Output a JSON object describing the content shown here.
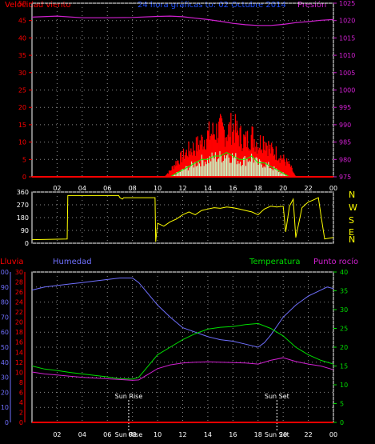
{
  "header": {
    "left_label": "Velocidad viento",
    "title": "24 hora gráficas to: 02 Octubre 2014",
    "right_label": "Presión"
  },
  "panel3_headers": {
    "rain": "Lluvia",
    "humidity": "Humedad",
    "temperature": "Temperatura",
    "dewpoint": "Punto rocío"
  },
  "colors": {
    "wind_axis": "#ff0000",
    "pressure": "#d020d0",
    "gust": "#ff0000",
    "avg_wind": "#00ff00",
    "wind_fill_light": "#c8ffc8",
    "direction": "#ffff00",
    "humidity": "#7070ff",
    "temperature": "#00dd00",
    "dewpoint": "#d020d0",
    "rain": "#ff0000",
    "title": "#2050ff",
    "axis_white": "#ffffff"
  },
  "chart_data": [
    {
      "type": "area",
      "title": "24 hora gráficas to: 02 Octubre 2014",
      "x_ticks": [
        "02",
        "04",
        "06",
        "08",
        "10",
        "12",
        "14",
        "16",
        "18",
        "20",
        "22",
        "00"
      ],
      "y_left": {
        "label": "Velocidad viento",
        "range": [
          0,
          50
        ],
        "ticks": [
          0,
          5,
          10,
          15,
          20,
          25,
          30,
          35,
          40,
          45,
          50
        ]
      },
      "y_right": {
        "label": "Presión",
        "range": [
          975,
          1025
        ],
        "ticks": [
          975,
          980,
          985,
          990,
          995,
          1000,
          1005,
          1010,
          1015,
          1020,
          1025
        ]
      },
      "series": [
        {
          "name": "Presión",
          "axis": "right",
          "x": [
            0,
            2,
            4,
            6,
            8,
            10,
            11,
            12,
            13,
            14,
            15,
            16,
            17,
            18,
            19,
            20,
            21,
            22,
            23,
            24
          ],
          "values": [
            1021,
            1021.3,
            1020.8,
            1020.8,
            1020.9,
            1021.2,
            1021.3,
            1021.1,
            1020.7,
            1020.3,
            1019.8,
            1019.2,
            1018.8,
            1018.6,
            1018.6,
            1018.9,
            1019.4,
            1019.7,
            1020.1,
            1020.3
          ]
        },
        {
          "name": "Racha",
          "axis": "left",
          "x": [
            10.5,
            11,
            11.5,
            12,
            12.5,
            13,
            13.5,
            14,
            14.5,
            15,
            15.5,
            16,
            16.5,
            17,
            17.5,
            18,
            18.5,
            19,
            19.5,
            20,
            20.5,
            21
          ],
          "values": [
            0,
            2,
            5,
            7,
            9,
            10,
            12,
            14,
            15,
            16,
            15,
            17,
            14,
            12,
            14,
            11,
            13,
            9,
            8,
            6,
            4,
            0
          ]
        },
        {
          "name": "Viento medio",
          "axis": "left",
          "x": [
            11,
            11.5,
            12,
            12.5,
            13,
            13.5,
            14,
            14.5,
            15,
            15.5,
            16,
            16.5,
            17,
            17.5,
            18,
            18.5,
            19,
            19.5,
            20,
            20.5
          ],
          "values": [
            0,
            1,
            2,
            3,
            4,
            5,
            5,
            6,
            6,
            7,
            6,
            5,
            5,
            6,
            4,
            4,
            3,
            2,
            1,
            0
          ]
        }
      ]
    },
    {
      "type": "line",
      "y_left": {
        "range": [
          0,
          360
        ],
        "ticks": [
          0,
          90,
          180,
          270,
          360
        ]
      },
      "compass_labels": [
        "N",
        "W",
        "S",
        "E",
        "N"
      ],
      "series": [
        {
          "name": "Dirección viento",
          "x": [
            0,
            2.8,
            2.85,
            6.9,
            7.0,
            7.2,
            7.3,
            9.8,
            9.85,
            10.0,
            10.5,
            11,
            11.5,
            12,
            12.5,
            13,
            13.5,
            14,
            14.5,
            15,
            15.5,
            16,
            16.5,
            17,
            17.5,
            18,
            18.5,
            19,
            19.5,
            20,
            20.2,
            20.5,
            20.8,
            21,
            21.5,
            22,
            22.3,
            22.8,
            23,
            23.3,
            24
          ],
          "values": [
            25,
            30,
            335,
            335,
            320,
            310,
            320,
            320,
            10,
            140,
            120,
            150,
            170,
            200,
            220,
            200,
            230,
            240,
            250,
            245,
            255,
            250,
            240,
            230,
            220,
            200,
            240,
            260,
            255,
            260,
            80,
            260,
            310,
            40,
            250,
            290,
            300,
            320,
            200,
            30,
            40
          ]
        }
      ]
    },
    {
      "type": "line",
      "x_ticks": [
        "02",
        "04",
        "06",
        "08",
        "10",
        "12",
        "14",
        "16",
        "18",
        "20",
        "22",
        "00"
      ],
      "y_rain": {
        "label": "Lluvia",
        "range": [
          0,
          30
        ],
        "ticks": [
          0,
          2,
          4,
          6,
          8,
          10,
          12,
          14,
          16,
          18,
          20,
          22,
          24,
          26,
          28,
          30
        ]
      },
      "y_hum": {
        "label": "Humedad",
        "range": [
          0,
          100
        ],
        "ticks": [
          0,
          10,
          20,
          30,
          40,
          50,
          60,
          70,
          80,
          90,
          100
        ]
      },
      "y_temp": {
        "label": "Temperatura",
        "range": [
          0,
          40
        ],
        "ticks": [
          0,
          5,
          10,
          15,
          20,
          25,
          30,
          35,
          40
        ]
      },
      "markers": [
        {
          "label": "Sun Rise",
          "x": 7.7
        },
        {
          "label": "Sun Set",
          "x": 19.5
        }
      ],
      "series": [
        {
          "name": "Humedad",
          "axis": "hum",
          "x": [
            0,
            1,
            2,
            3,
            4,
            5,
            6,
            7,
            8,
            8.5,
            9,
            10,
            11,
            12,
            13,
            14,
            15,
            16,
            17,
            18,
            18.5,
            19,
            20,
            21,
            22,
            23,
            23.5,
            24
          ],
          "values": [
            88,
            90,
            91,
            92,
            93,
            94,
            95,
            96,
            96,
            93,
            88,
            78,
            70,
            63,
            60,
            57,
            55,
            54,
            52,
            50,
            53,
            58,
            70,
            78,
            84,
            88,
            90,
            89
          ]
        },
        {
          "name": "Temperatura",
          "axis": "temp",
          "x": [
            0,
            1,
            2,
            3,
            4,
            5,
            6,
            7,
            8,
            8.5,
            9,
            10,
            11,
            12,
            13,
            14,
            15,
            16,
            17,
            18,
            19,
            20,
            21,
            22,
            23,
            24
          ],
          "values": [
            15,
            14.2,
            13.8,
            13.3,
            12.9,
            12.5,
            12.1,
            11.6,
            11.5,
            12,
            14,
            18,
            20,
            22,
            23.6,
            24.8,
            25.3,
            25.5,
            26,
            26.3,
            25,
            23,
            20,
            18,
            16.5,
            15.5
          ]
        },
        {
          "name": "Punto rocío",
          "axis": "temp",
          "x": [
            0,
            1,
            2,
            3,
            4,
            5,
            6,
            7,
            8,
            8.5,
            9,
            10,
            11,
            12,
            13,
            14,
            15,
            16,
            17,
            18,
            19,
            20,
            21,
            22,
            23,
            24
          ],
          "values": [
            13.4,
            12.9,
            12.6,
            12.3,
            12,
            11.8,
            11.6,
            11.4,
            11.2,
            11.3,
            12.3,
            14.3,
            15.3,
            15.8,
            16,
            16.1,
            16,
            15.9,
            15.8,
            15.5,
            16.5,
            17.2,
            16.2,
            15.5,
            15,
            14
          ]
        },
        {
          "name": "Lluvia",
          "axis": "rain",
          "x": [
            0,
            24
          ],
          "values": [
            0,
            0
          ]
        }
      ]
    }
  ]
}
